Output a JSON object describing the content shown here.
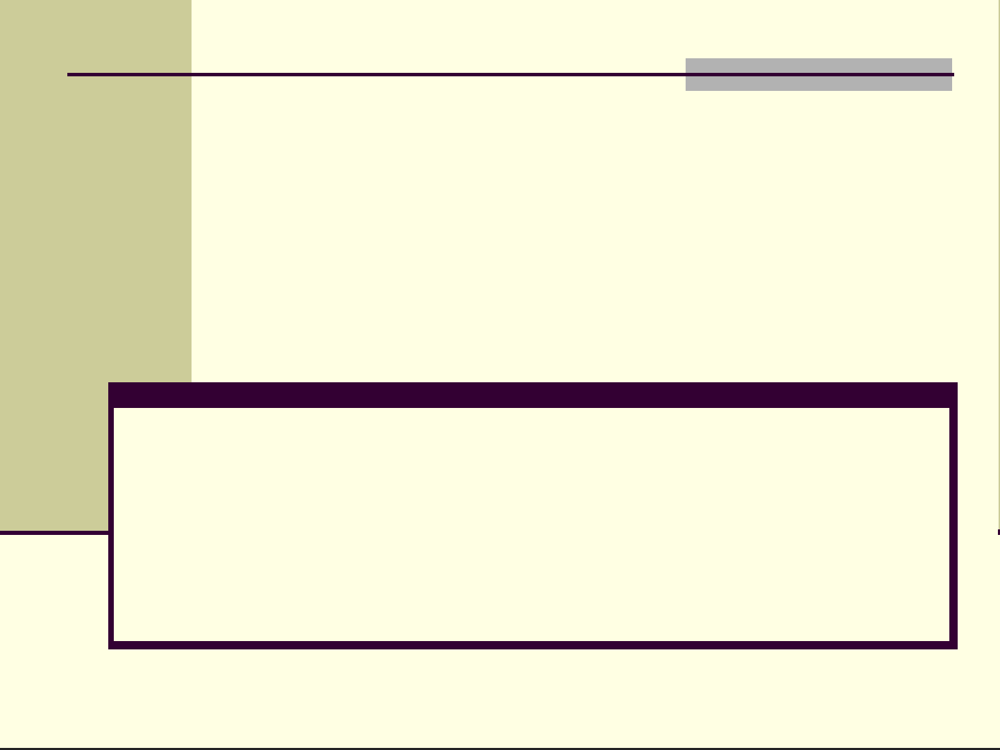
{
  "slide": {
    "colors": {
      "background": "#FFFFE3",
      "sidebar": "#CCCC99",
      "accent_dark": "#330033",
      "title_box": "#B2B2B2"
    }
  }
}
